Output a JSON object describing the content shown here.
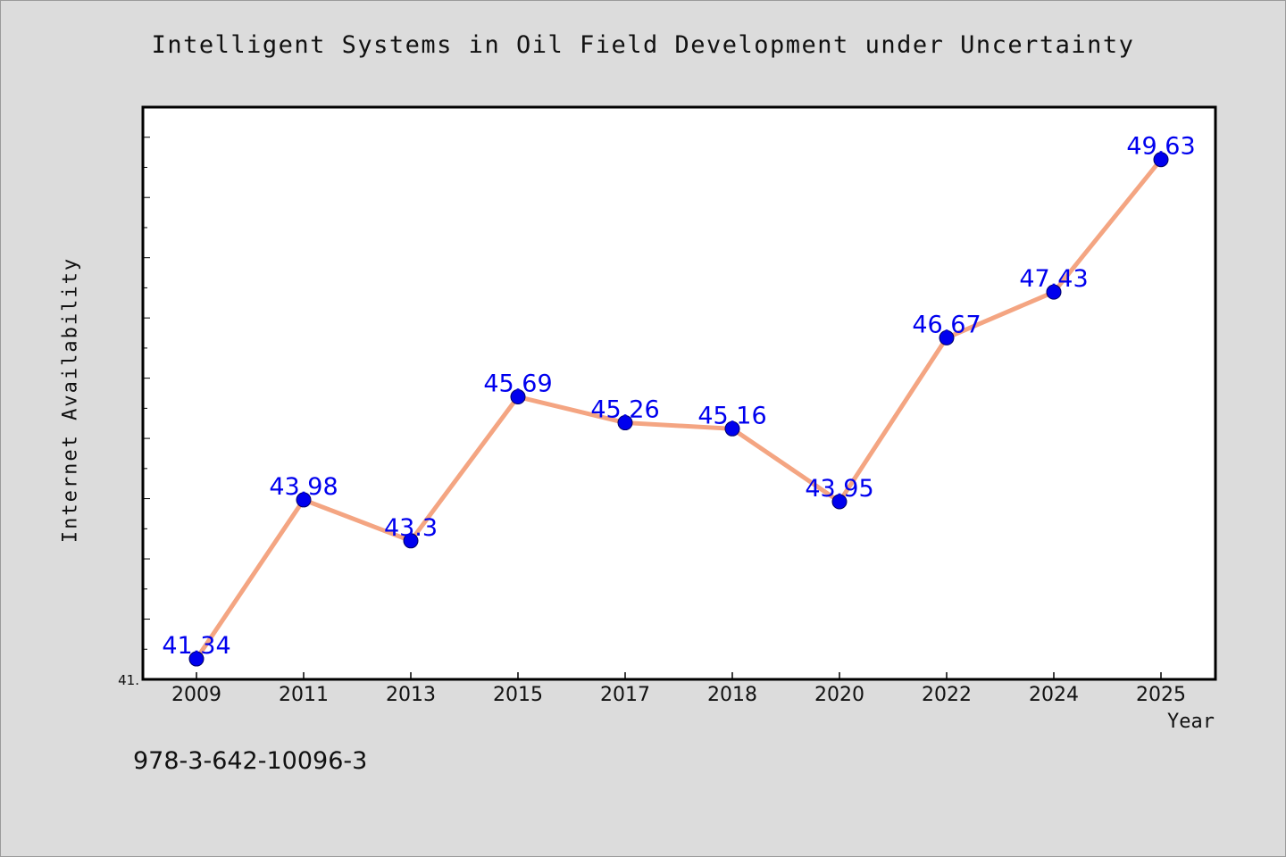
{
  "figure": {
    "footer_text": "978-3-642-10096-3"
  },
  "chart_data": {
    "type": "line",
    "title": "Intelligent Systems in Oil Field Development under Uncertainty",
    "xlabel": "Year",
    "ylabel": "Internet Availability",
    "categories": [
      "2009",
      "2011",
      "2013",
      "2015",
      "2017",
      "2018",
      "2020",
      "2022",
      "2024",
      "2025"
    ],
    "series": [
      {
        "values": [
          41.34,
          43.98,
          43.3,
          45.69,
          45.26,
          45.16,
          43.95,
          46.67,
          47.43,
          49.63
        ],
        "data_labels": [
          "41.34",
          "43.98",
          "43.3",
          "45.69",
          "45.26",
          "45.16",
          "43.95",
          "46.67",
          "47.43",
          "49.63"
        ],
        "line_color": "#f4a582",
        "marker_color": "#0000ee",
        "label_color": "#0000ee"
      }
    ],
    "ylim": [
      41.0,
      50.5
    ],
    "y_tick_labels": [
      {
        "value": 41.0,
        "label": "41."
      }
    ],
    "y_minor_tick_step": 0.5,
    "grid": false,
    "legend": "none"
  }
}
